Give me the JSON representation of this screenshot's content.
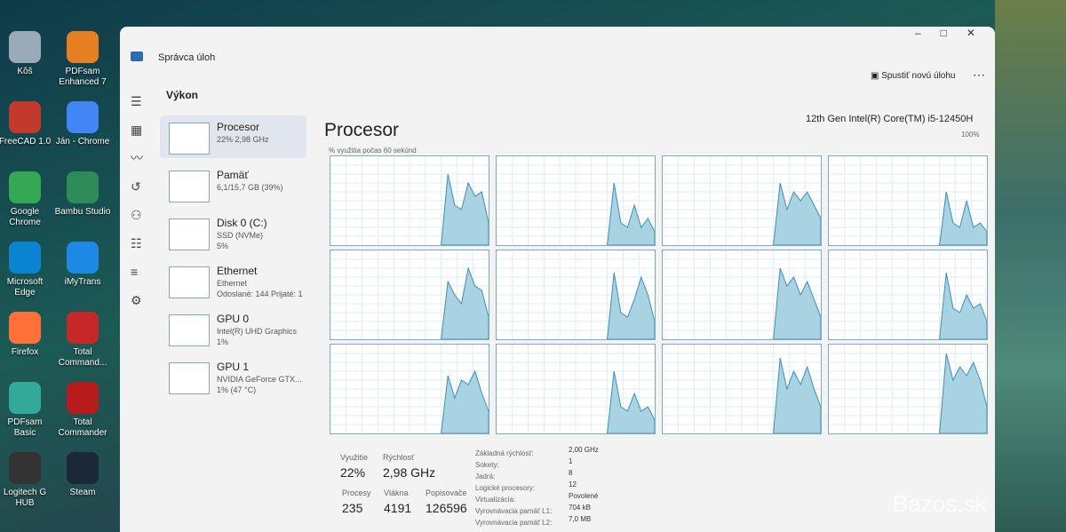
{
  "desktop_icons": [
    "Kôš",
    "PDFsam Enhanced 7",
    "FreeCAD 1.0",
    "Ján - Chrome",
    "Google Chrome",
    "Bambu Studio",
    "Microsoft Edge",
    "iMyTrans",
    "Firefox",
    "Total Command...",
    "PDFsam Basic",
    "Total Commander",
    "Logitech G HUB",
    "Steam"
  ],
  "window": {
    "title": "Správca úloh",
    "section": "Výkon",
    "new_task": "Spustiť novú úlohu"
  },
  "sidebar": [
    {
      "name": "Procesor",
      "lines": [
        "22% 2,98 GHz"
      ]
    },
    {
      "name": "Pamäť",
      "lines": [
        "6,1/15,7 GB (39%)"
      ]
    },
    {
      "name": "Disk 0 (C:)",
      "lines": [
        "SSD (NVMe)",
        "5%"
      ]
    },
    {
      "name": "Ethernet",
      "lines": [
        "Ethernet",
        "Odoslané: 144 Prijaté: 1"
      ]
    },
    {
      "name": "GPU 0",
      "lines": [
        "Intel(R) UHD Graphics",
        "1%"
      ]
    },
    {
      "name": "GPU 1",
      "lines": [
        "NVIDIA GeForce GTX...",
        "1% (47 °C)"
      ]
    }
  ],
  "main": {
    "title": "Procesor",
    "cpu_name": "12th Gen Intel(R) Core(TM) i5-12450H",
    "graph_label": "% využitia počas 60 sekúnd",
    "graph_max": "100%",
    "ylim": [
      0,
      100
    ],
    "core_graphs": [
      [
        0,
        80,
        45,
        40,
        70,
        55,
        60,
        25
      ],
      [
        0,
        70,
        25,
        20,
        45,
        20,
        30,
        15
      ],
      [
        0,
        70,
        40,
        60,
        50,
        60,
        45,
        30
      ],
      [
        0,
        60,
        25,
        20,
        50,
        20,
        25,
        15
      ],
      [
        0,
        65,
        50,
        40,
        80,
        60,
        55,
        25
      ],
      [
        0,
        75,
        30,
        25,
        45,
        70,
        50,
        20
      ],
      [
        0,
        80,
        60,
        70,
        50,
        65,
        45,
        25
      ],
      [
        0,
        75,
        35,
        30,
        50,
        35,
        40,
        20
      ],
      [
        0,
        65,
        40,
        60,
        55,
        70,
        45,
        25
      ],
      [
        0,
        70,
        30,
        25,
        45,
        25,
        30,
        15
      ],
      [
        0,
        85,
        50,
        70,
        55,
        75,
        50,
        30
      ],
      [
        0,
        90,
        60,
        75,
        65,
        80,
        60,
        30
      ]
    ],
    "stats": [
      {
        "label": "Využitie",
        "value": "22%"
      },
      {
        "label": "Rýchlosť",
        "value": "2,98 GHz"
      },
      {
        "label": "Procesy",
        "value": "235"
      },
      {
        "label": "Vlákna",
        "value": "4191"
      },
      {
        "label": "Popisovače",
        "value": "126596"
      }
    ],
    "details": [
      {
        "label": "Základná rýchlosť:",
        "value": "2,00 GHz"
      },
      {
        "label": "Sokety:",
        "value": "1"
      },
      {
        "label": "Jadrá:",
        "value": "8"
      },
      {
        "label": "Logické procesory:",
        "value": "12"
      },
      {
        "label": "Virtualizácia:",
        "value": "Povolené"
      },
      {
        "label": "Vyrovnávacia pamäť L1:",
        "value": "704 kB"
      },
      {
        "label": "Vyrovnávacia pamäť L2:",
        "value": "7,0 MB"
      }
    ]
  },
  "watermark": "Bazos.sk"
}
